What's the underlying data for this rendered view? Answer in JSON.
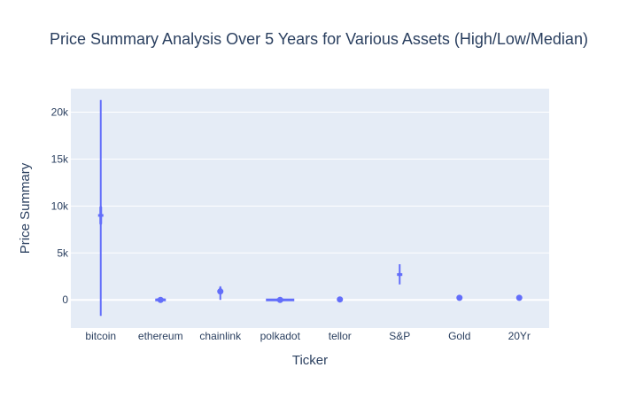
{
  "chart_data": {
    "type": "box",
    "title": "Price Summary Analysis Over 5 Years for Various Assets (High/Low/Median)",
    "xlabel": "Ticker",
    "ylabel": "Price Summary",
    "categories": [
      "bitcoin",
      "ethereum",
      "chainlink",
      "polkadot",
      "tellor",
      "S&P",
      "Gold",
      "20Yr"
    ],
    "ylim": [
      -3000,
      22500
    ],
    "yticks": [
      0,
      5000,
      10000,
      15000,
      20000
    ],
    "ytick_labels": [
      "0",
      "5k",
      "10k",
      "15k",
      "20k"
    ],
    "series": [
      {
        "name": "Price Summary",
        "color": "#636efa",
        "boxes": [
          {
            "category": "bitcoin",
            "low": -1700,
            "high": 21300,
            "median": 9000,
            "box_low": 8000,
            "box_high": 10000
          },
          {
            "category": "ethereum",
            "low": -150,
            "high": 200,
            "median": 0,
            "box_low": -40,
            "box_high": 80
          },
          {
            "category": "chainlink",
            "low": 0,
            "high": 1450,
            "median": 900,
            "box_low": 600,
            "box_high": 1350
          },
          {
            "category": "polkadot",
            "low": -100,
            "high": 100,
            "median": 0,
            "box_low": -40,
            "box_high": 40
          },
          {
            "category": "tellor",
            "low": -50,
            "high": 150,
            "median": 50,
            "box_low": 0,
            "box_high": 100
          },
          {
            "category": "S&P",
            "low": 1650,
            "high": 3800,
            "median": 2700,
            "box_low": 2500,
            "box_high": 2900
          },
          {
            "category": "Gold",
            "low": 150,
            "high": 300,
            "median": 220,
            "box_low": 180,
            "box_high": 260
          },
          {
            "category": "20Yr",
            "low": 150,
            "high": 300,
            "median": 220,
            "box_low": 180,
            "box_high": 260
          }
        ]
      }
    ],
    "colors": {
      "plot_bg": "#e5ecf6",
      "grid": "#ffffff",
      "text": "#2a3f5f",
      "trace": "#636efa"
    }
  }
}
